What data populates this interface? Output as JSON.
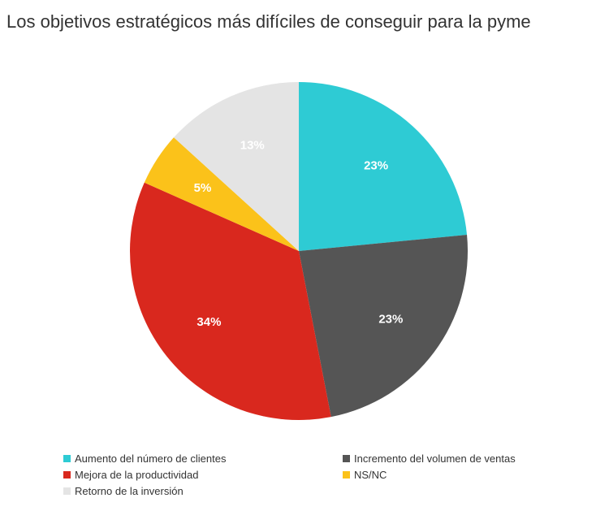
{
  "chart_data": {
    "type": "pie",
    "title": "Los objetivos estratégicos más difíciles de conseguir para la pyme",
    "slices": [
      {
        "label": "Aumento del número de clientes",
        "value": 23,
        "value_label": "23%",
        "color": "#2ecbd4"
      },
      {
        "label": "Incremento del volumen de ventas",
        "value": 23,
        "value_label": "23%",
        "color": "#555555"
      },
      {
        "label": "Mejora de la productividad",
        "value": 34,
        "value_label": "34%",
        "color": "#d9281e"
      },
      {
        "label": "NS/NC",
        "value": 5,
        "value_label": "5%",
        "color": "#fbc21a"
      },
      {
        "label": "Retorno de la inversión",
        "value": 13,
        "value_label": "13%",
        "color": "#e4e4e4"
      }
    ],
    "legend_placement": "bottom"
  }
}
